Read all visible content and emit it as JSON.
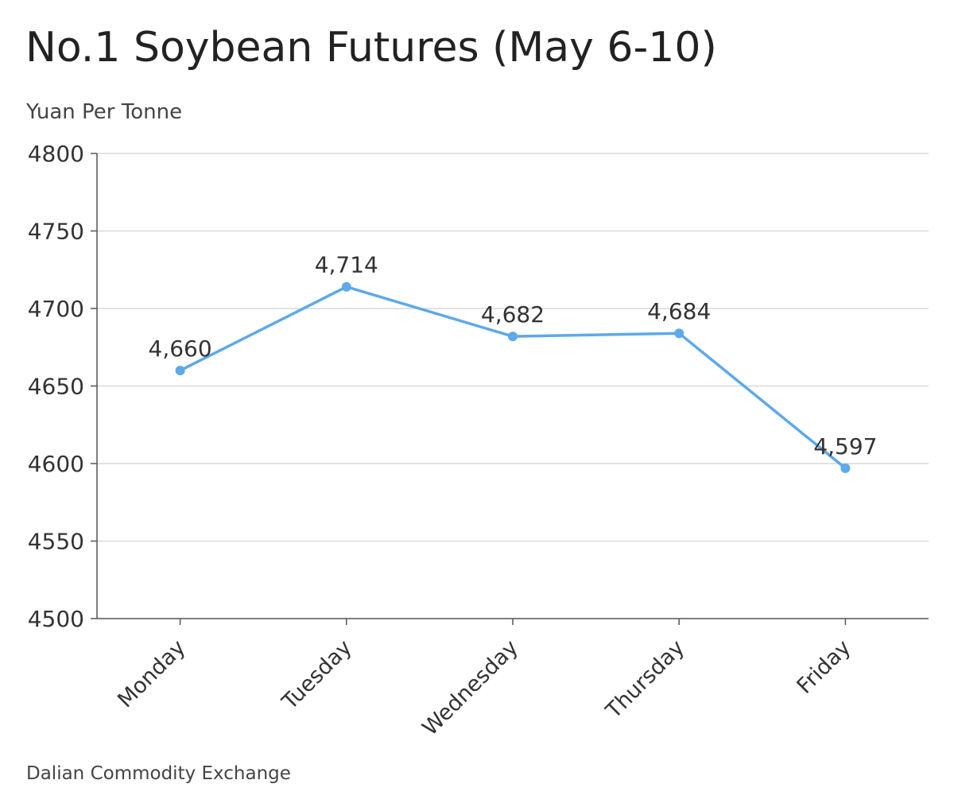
{
  "chart_data": {
    "type": "line",
    "title": "No.1 Soybean Futures (May 6-10)",
    "ylabel": "Yuan Per Tonne",
    "xlabel": "",
    "source": "Dalian Commodity Exchange",
    "categories": [
      "Monday",
      "Tuesday",
      "Wednesday",
      "Thursday",
      "Friday"
    ],
    "series": [
      {
        "values": [
          4660,
          4714,
          4682,
          4684,
          4597
        ],
        "data_labels": [
          "4,660",
          "4,714",
          "4,682",
          "4,684",
          "4,597"
        ]
      }
    ],
    "ylim": [
      4500,
      4800
    ],
    "yticks": [
      4500,
      4550,
      4600,
      4650,
      4700,
      4750,
      4800
    ],
    "grid": true,
    "line_color": "#5DA9E9",
    "grid_color": "#d9d9d9",
    "axis_color": "#555555"
  }
}
